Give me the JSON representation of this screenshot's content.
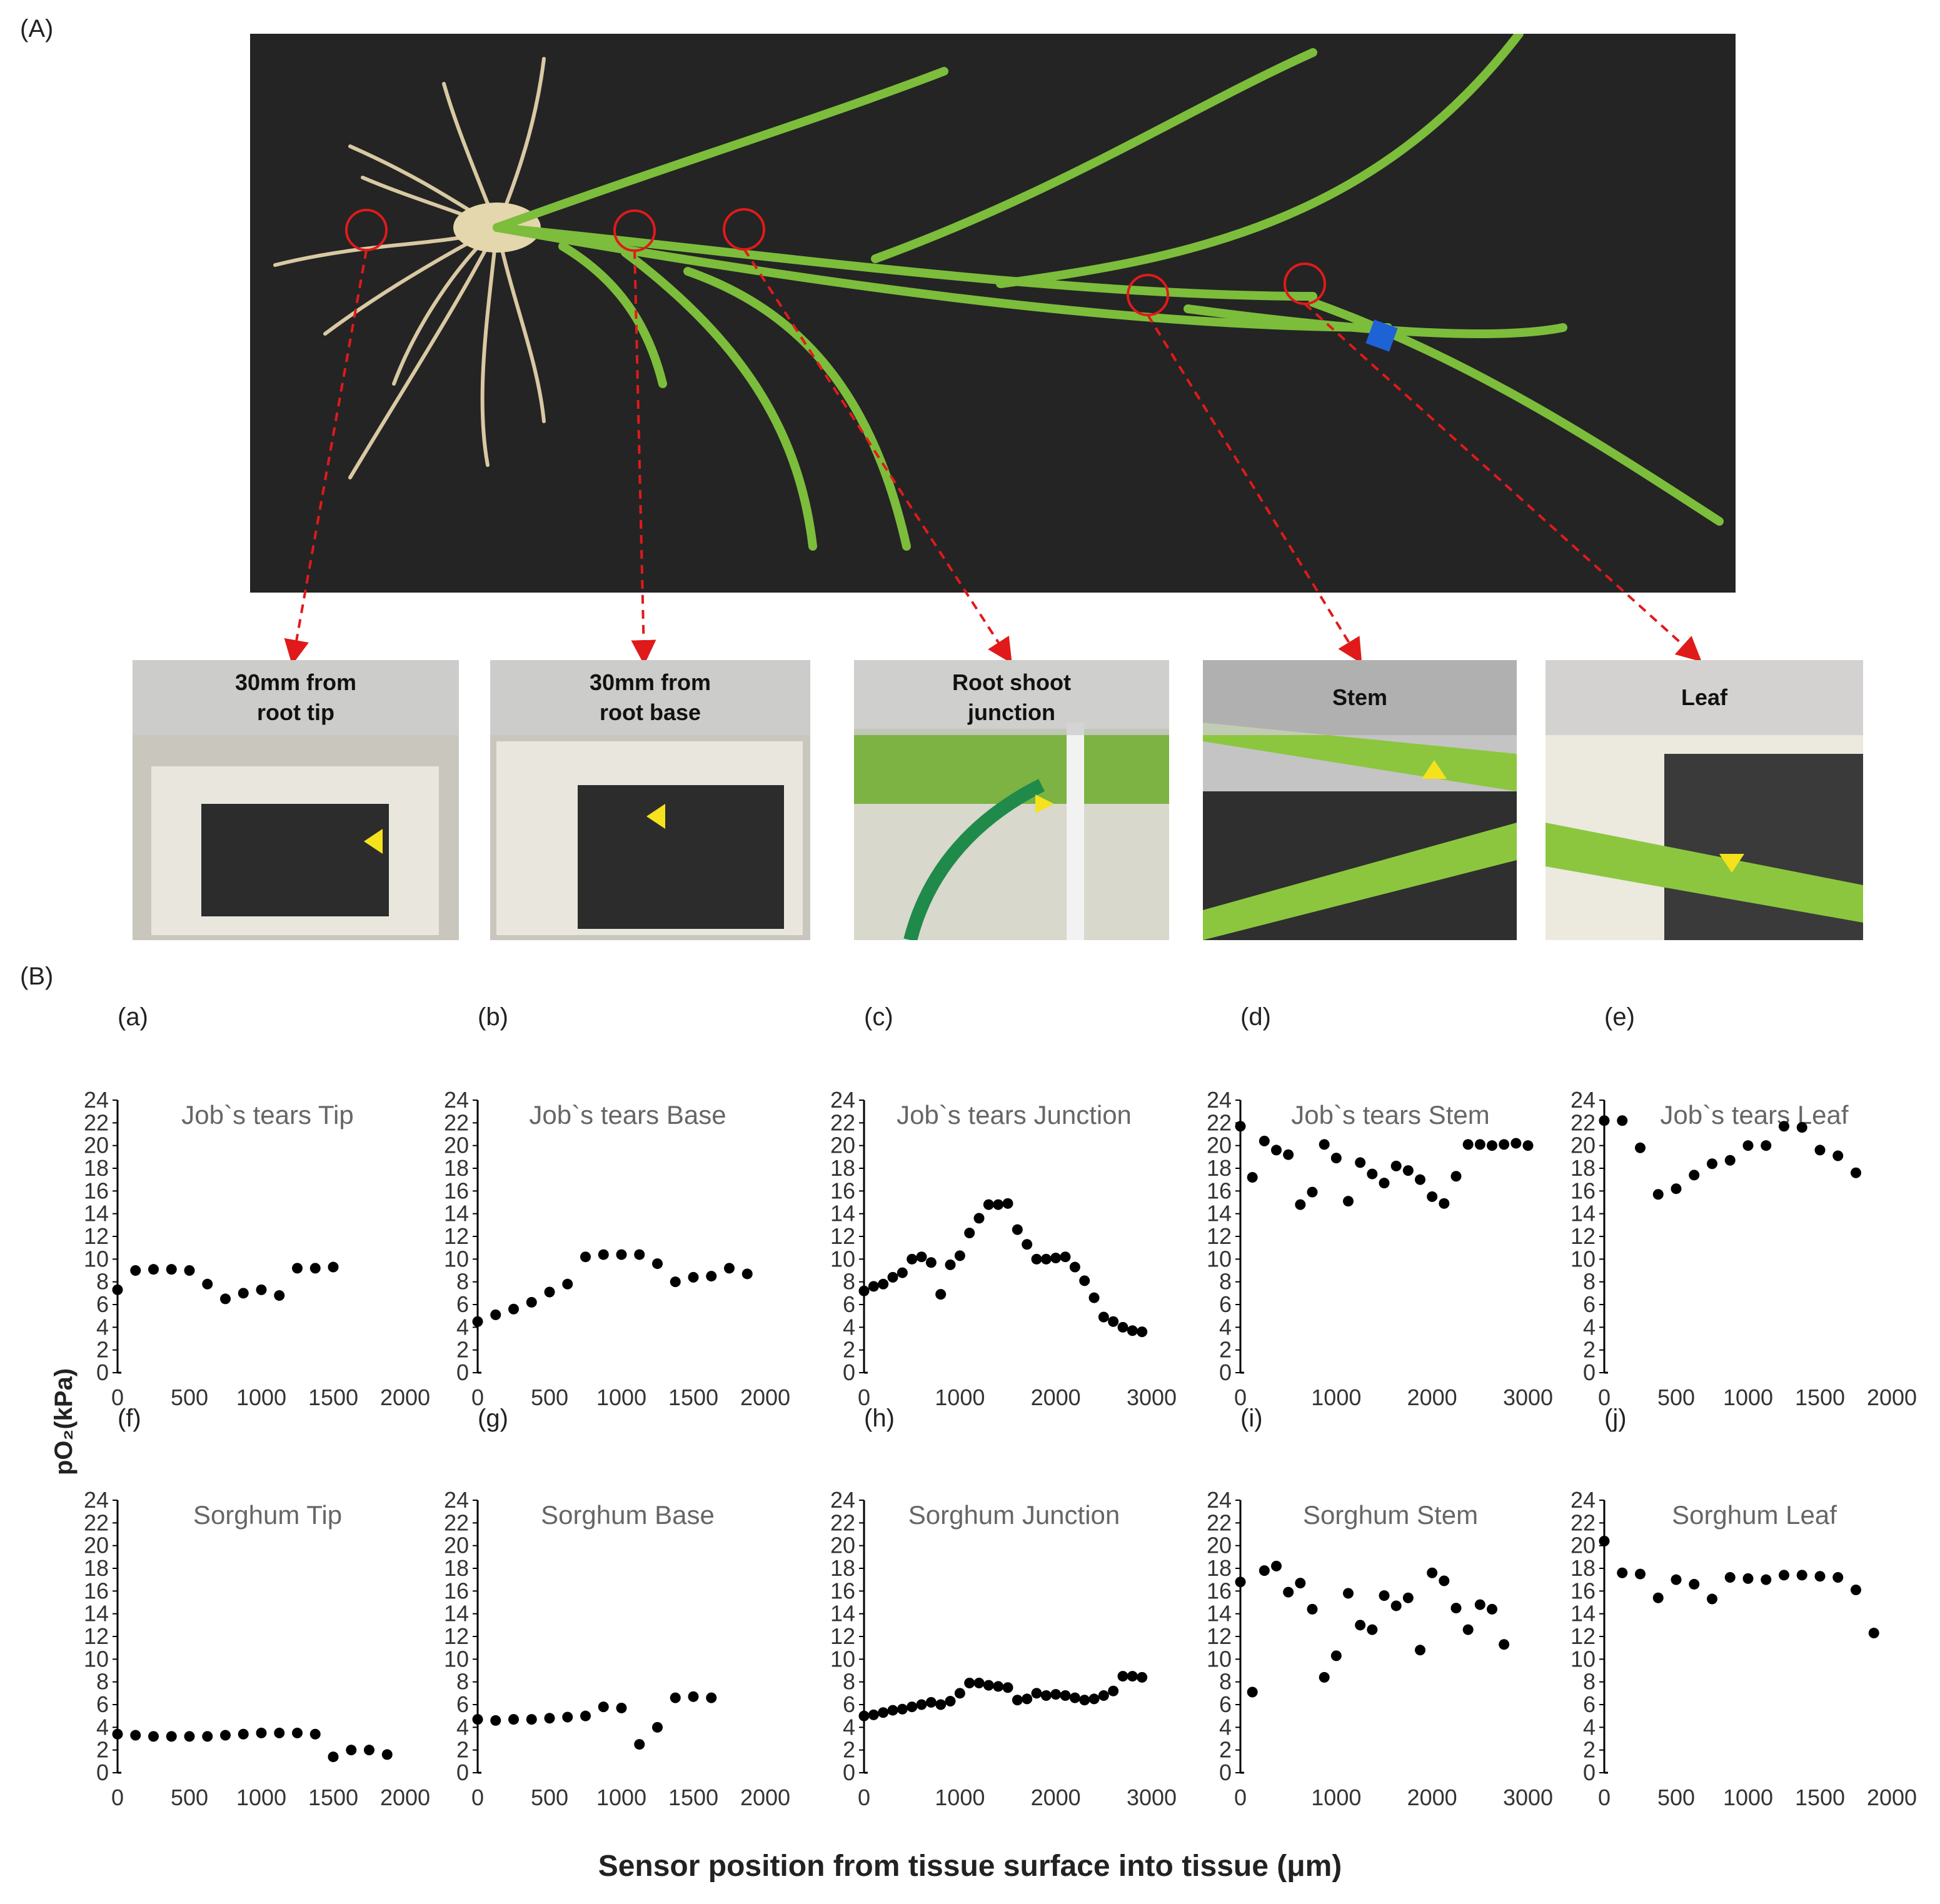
{
  "figure": {
    "panel_a_label": "(A)",
    "panel_b_label": "(B)",
    "ylabel": "pO₂(kPa)",
    "xlabel": "Sensor position from tissue surface into tissue (μm)"
  },
  "photo": {
    "thumbnails": [
      {
        "label": "30mm  from\nroot tip"
      },
      {
        "label": "30mm  from\nroot base"
      },
      {
        "label": "Root shoot\njunction"
      },
      {
        "label": "Stem"
      },
      {
        "label": "Leaf"
      }
    ]
  },
  "chart_data": [
    {
      "panel": "(a)",
      "type": "scatter",
      "title": "Job`s tears Tip",
      "xlim": [
        0,
        2000
      ],
      "xticks": [
        0,
        500,
        1000,
        1500,
        2000
      ],
      "ylim": [
        0,
        24
      ],
      "yticks": [
        0,
        2,
        4,
        6,
        8,
        10,
        12,
        14,
        16,
        18,
        20,
        22,
        24
      ],
      "x": [
        0,
        125,
        250,
        375,
        500,
        625,
        750,
        875,
        1000,
        1125,
        1250,
        1375,
        1500
      ],
      "y": [
        7.3,
        9.0,
        9.1,
        9.1,
        9.0,
        7.8,
        6.5,
        7.0,
        7.3,
        6.8,
        9.2,
        9.2,
        9.3
      ]
    },
    {
      "panel": "(b)",
      "type": "scatter",
      "title": "Job`s tears Base",
      "xlim": [
        0,
        2000
      ],
      "xticks": [
        0,
        500,
        1000,
        1500,
        2000
      ],
      "ylim": [
        0,
        24
      ],
      "yticks": [
        0,
        2,
        4,
        6,
        8,
        10,
        12,
        14,
        16,
        18,
        20,
        22,
        24
      ],
      "x": [
        0,
        125,
        250,
        375,
        500,
        625,
        750,
        875,
        1000,
        1125,
        1250,
        1375,
        1500,
        1625,
        1750,
        1875
      ],
      "y": [
        4.5,
        5.1,
        5.6,
        6.2,
        7.1,
        7.8,
        10.2,
        10.4,
        10.4,
        10.4,
        9.6,
        8.0,
        8.4,
        8.5,
        9.2,
        8.7
      ]
    },
    {
      "panel": "(c)",
      "type": "scatter",
      "title": "Job`s tears Junction",
      "xlim": [
        0,
        3000
      ],
      "xticks": [
        0,
        1000,
        2000,
        3000
      ],
      "ylim": [
        0,
        24
      ],
      "yticks": [
        0,
        2,
        4,
        6,
        8,
        10,
        12,
        14,
        16,
        18,
        20,
        22,
        24
      ],
      "x": [
        0,
        100,
        200,
        300,
        400,
        500,
        600,
        700,
        800,
        900,
        1000,
        1100,
        1200,
        1300,
        1400,
        1500,
        1600,
        1700,
        1800,
        1900,
        2000,
        2100,
        2200,
        2300,
        2400,
        2500,
        2600,
        2700,
        2800,
        2900
      ],
      "y": [
        7.2,
        7.6,
        7.8,
        8.4,
        8.8,
        10.0,
        10.2,
        9.7,
        6.9,
        9.5,
        10.3,
        12.3,
        13.6,
        14.8,
        14.8,
        14.9,
        12.6,
        11.3,
        10.0,
        10.0,
        10.1,
        10.2,
        9.3,
        8.1,
        6.6,
        4.9,
        4.5,
        4.0,
        3.7,
        3.6
      ]
    },
    {
      "panel": "(d)",
      "type": "scatter",
      "title": "Job`s tears Stem",
      "xlim": [
        0,
        3000
      ],
      "xticks": [
        0,
        1000,
        2000,
        3000
      ],
      "ylim": [
        0,
        24
      ],
      "yticks": [
        0,
        2,
        4,
        6,
        8,
        10,
        12,
        14,
        16,
        18,
        20,
        22,
        24
      ],
      "x": [
        0,
        125,
        250,
        375,
        500,
        625,
        750,
        875,
        1000,
        1125,
        1250,
        1375,
        1500,
        1625,
        1750,
        1875,
        2000,
        2125,
        2250,
        2375,
        2500,
        2625,
        2750,
        2875,
        3000
      ],
      "y": [
        21.7,
        17.2,
        20.4,
        19.6,
        19.2,
        14.8,
        15.9,
        20.1,
        18.9,
        15.1,
        18.5,
        17.5,
        16.7,
        18.2,
        17.8,
        17.0,
        15.5,
        14.9,
        17.3,
        20.1,
        20.1,
        20.0,
        20.1,
        20.2,
        20.0
      ]
    },
    {
      "panel": "(e)",
      "type": "scatter",
      "title": "Job`s tears Leaf",
      "xlim": [
        0,
        2000
      ],
      "xticks": [
        0,
        500,
        1000,
        1500,
        2000
      ],
      "ylim": [
        0,
        24
      ],
      "yticks": [
        0,
        2,
        4,
        6,
        8,
        10,
        12,
        14,
        16,
        18,
        20,
        22,
        24
      ],
      "x": [
        0,
        125,
        250,
        375,
        500,
        625,
        750,
        875,
        1000,
        1125,
        1250,
        1375,
        1500,
        1625,
        1750
      ],
      "y": [
        22.2,
        22.2,
        19.8,
        15.7,
        16.2,
        17.4,
        18.4,
        18.7,
        20.0,
        20.0,
        21.7,
        21.6,
        19.6,
        19.1,
        17.6
      ]
    },
    {
      "panel": "(f)",
      "type": "scatter",
      "title": "Sorghum Tip",
      "xlim": [
        0,
        2000
      ],
      "xticks": [
        0,
        500,
        1000,
        1500,
        2000
      ],
      "ylim": [
        0,
        24
      ],
      "yticks": [
        0,
        2,
        4,
        6,
        8,
        10,
        12,
        14,
        16,
        18,
        20,
        22,
        24
      ],
      "x": [
        0,
        125,
        250,
        375,
        500,
        625,
        750,
        875,
        1000,
        1125,
        1250,
        1375,
        1500,
        1625,
        1750,
        1875
      ],
      "y": [
        3.4,
        3.3,
        3.2,
        3.2,
        3.2,
        3.2,
        3.3,
        3.4,
        3.5,
        3.5,
        3.5,
        3.4,
        1.4,
        2.0,
        2.0,
        1.6
      ]
    },
    {
      "panel": "(g)",
      "type": "scatter",
      "title": "Sorghum Base",
      "xlim": [
        0,
        2000
      ],
      "xticks": [
        0,
        500,
        1000,
        1500,
        2000
      ],
      "ylim": [
        0,
        24
      ],
      "yticks": [
        0,
        2,
        4,
        6,
        8,
        10,
        12,
        14,
        16,
        18,
        20,
        22,
        24
      ],
      "x": [
        0,
        125,
        250,
        375,
        500,
        625,
        750,
        875,
        1000,
        1125,
        1250,
        1375,
        1500,
        1625
      ],
      "y": [
        4.7,
        4.6,
        4.7,
        4.7,
        4.8,
        4.9,
        5.0,
        5.8,
        5.7,
        2.5,
        4.0,
        6.6,
        6.7,
        6.6
      ]
    },
    {
      "panel": "(h)",
      "type": "scatter",
      "title": "Sorghum Junction",
      "xlim": [
        0,
        3000
      ],
      "xticks": [
        0,
        1000,
        2000,
        3000
      ],
      "ylim": [
        0,
        24
      ],
      "yticks": [
        0,
        2,
        4,
        6,
        8,
        10,
        12,
        14,
        16,
        18,
        20,
        22,
        24
      ],
      "x": [
        0,
        100,
        200,
        300,
        400,
        500,
        600,
        700,
        800,
        900,
        1000,
        1100,
        1200,
        1300,
        1400,
        1500,
        1600,
        1700,
        1800,
        1900,
        2000,
        2100,
        2200,
        2300,
        2400,
        2500,
        2600,
        2700,
        2800,
        2900
      ],
      "y": [
        5.0,
        5.1,
        5.3,
        5.5,
        5.6,
        5.8,
        6.0,
        6.2,
        6.0,
        6.3,
        7.0,
        7.9,
        7.9,
        7.7,
        7.6,
        7.5,
        6.4,
        6.5,
        7.0,
        6.8,
        6.9,
        6.8,
        6.6,
        6.4,
        6.5,
        6.8,
        7.2,
        8.5,
        8.5,
        8.4
      ]
    },
    {
      "panel": "(i)",
      "type": "scatter",
      "title": "Sorghum Stem",
      "xlim": [
        0,
        3000
      ],
      "xticks": [
        0,
        1000,
        2000,
        3000
      ],
      "ylim": [
        0,
        24
      ],
      "yticks": [
        0,
        2,
        4,
        6,
        8,
        10,
        12,
        14,
        16,
        18,
        20,
        22,
        24
      ],
      "x": [
        0,
        125,
        250,
        375,
        500,
        625,
        750,
        875,
        1000,
        1125,
        1250,
        1375,
        1500,
        1625,
        1750,
        1875,
        2000,
        2125,
        2250,
        2375,
        2500,
        2625,
        2750
      ],
      "y": [
        16.8,
        7.1,
        17.8,
        18.2,
        15.9,
        16.7,
        14.4,
        8.4,
        10.3,
        15.8,
        13.0,
        12.6,
        15.6,
        14.7,
        15.4,
        10.8,
        17.6,
        16.9,
        14.5,
        12.6,
        14.8,
        14.4,
        11.3
      ]
    },
    {
      "panel": "(j)",
      "type": "scatter",
      "title": "Sorghum Leaf",
      "xlim": [
        0,
        2000
      ],
      "xticks": [
        0,
        500,
        1000,
        1500,
        2000
      ],
      "ylim": [
        0,
        24
      ],
      "yticks": [
        0,
        2,
        4,
        6,
        8,
        10,
        12,
        14,
        16,
        18,
        20,
        22,
        24
      ],
      "x": [
        0,
        125,
        250,
        375,
        500,
        625,
        750,
        875,
        1000,
        1125,
        1250,
        1375,
        1500,
        1625,
        1750,
        1875
      ],
      "y": [
        20.4,
        17.6,
        17.5,
        15.4,
        17.0,
        16.6,
        15.3,
        17.2,
        17.1,
        17.0,
        17.4,
        17.4,
        17.3,
        17.2,
        16.1,
        12.3
      ]
    }
  ]
}
